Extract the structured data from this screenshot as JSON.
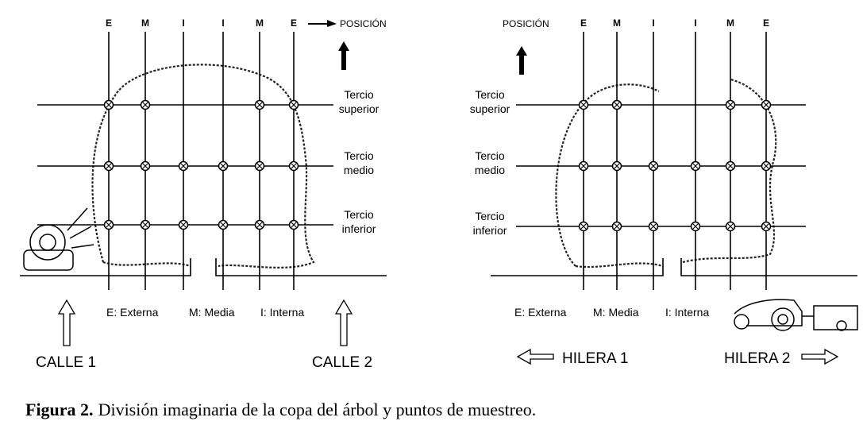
{
  "left": {
    "columns": [
      "E",
      "M",
      "I",
      "I",
      "M",
      "E"
    ],
    "position": "POSICIÓN",
    "rows": [
      [
        "Tercio",
        "superior"
      ],
      [
        "Tercio",
        "medio"
      ],
      [
        "Tercio",
        "inferior"
      ]
    ],
    "legend": [
      "E: Externa",
      "M: Media",
      "I: Interna"
    ],
    "lanes": [
      "CALLE 1",
      "CALLE 2"
    ]
  },
  "right": {
    "columns": [
      "E",
      "M",
      "I",
      "I",
      "M",
      "E"
    ],
    "position": "POSICIÓN",
    "rows": [
      [
        "Tercio",
        "superior"
      ],
      [
        "Tercio",
        "medio"
      ],
      [
        "Tercio",
        "inferior"
      ]
    ],
    "legend": [
      "E: Externa",
      "M: Media",
      "I: Interna"
    ],
    "lanes": [
      "HILERA 1",
      "HILERA 2"
    ]
  },
  "caption": {
    "label": "Figura 2.",
    "text": "División imaginaria de la copa del árbol y puntos de muestreo."
  }
}
